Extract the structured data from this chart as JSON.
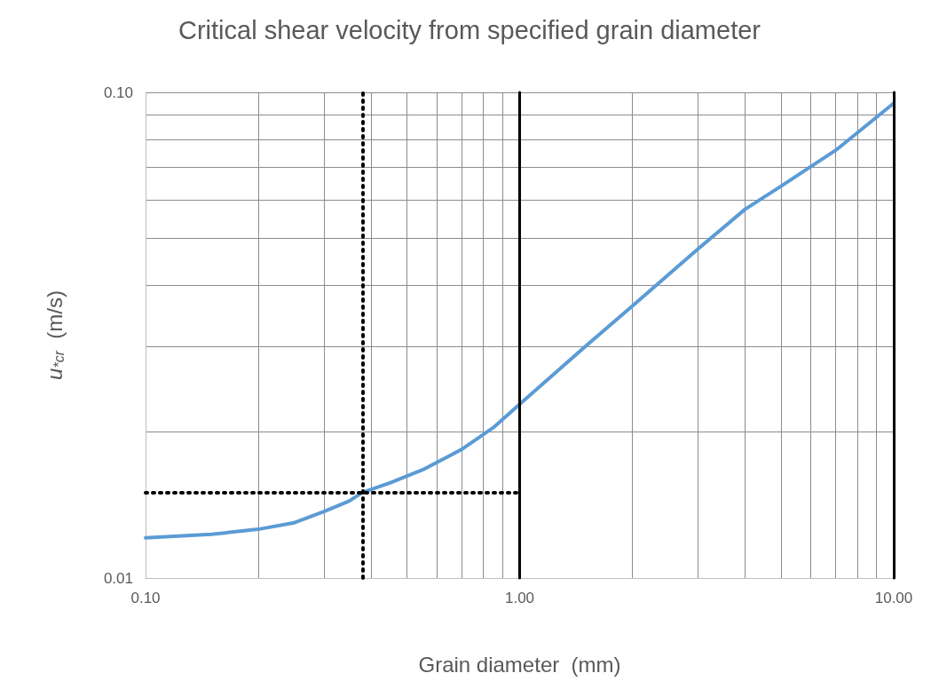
{
  "chart_data": {
    "type": "line",
    "title": "Critical shear velocity from specified grain diameter",
    "xlabel": "Grain diameter  (mm)",
    "ylabel": "u$_{*cr}$  (m/s)",
    "x": [
      0.1,
      0.15,
      0.2,
      0.25,
      0.3,
      0.35,
      0.38,
      0.45,
      0.55,
      0.7,
      0.85,
      1,
      1.5,
      2,
      3,
      4,
      5,
      7,
      10
    ],
    "series": [
      {
        "color": "#5b9bd5",
        "values": [
          0.0121,
          0.0123,
          0.0126,
          0.013,
          0.0137,
          0.0144,
          0.015,
          0.0157,
          0.0167,
          0.0184,
          0.0204,
          0.0228,
          0.03,
          0.0363,
          0.0476,
          0.0574,
          0.0641,
          0.076,
          0.095
        ]
      }
    ],
    "log": "xy",
    "xlim": [
      0.1,
      10
    ],
    "ylim": [
      0.01,
      0.1
    ],
    "xticks": [
      {
        "value": 0.1,
        "label": "0.10"
      },
      {
        "value": 0.2,
        "label": null
      },
      {
        "value": 0.3,
        "label": null
      },
      {
        "value": 0.4,
        "label": null
      },
      {
        "value": 0.5,
        "label": null
      },
      {
        "value": 0.6,
        "label": null
      },
      {
        "value": 0.7,
        "label": null
      },
      {
        "value": 0.8,
        "label": null
      },
      {
        "value": 0.9,
        "label": null
      },
      {
        "value": 1,
        "label": "1.00"
      },
      {
        "value": 2,
        "label": null
      },
      {
        "value": 3,
        "label": null
      },
      {
        "value": 4,
        "label": null
      },
      {
        "value": 5,
        "label": null
      },
      {
        "value": 6,
        "label": null
      },
      {
        "value": 7,
        "label": null
      },
      {
        "value": 8,
        "label": null
      },
      {
        "value": 9,
        "label": null
      },
      {
        "value": 10,
        "label": "10.00"
      }
    ],
    "yticks": [
      {
        "value": 0.01,
        "label": "0.01"
      },
      {
        "value": 0.02,
        "label": null
      },
      {
        "value": 0.03,
        "label": null
      },
      {
        "value": 0.04,
        "label": null
      },
      {
        "value": 0.05,
        "label": null
      },
      {
        "value": 0.06,
        "label": null
      },
      {
        "value": 0.07,
        "label": null
      },
      {
        "value": 0.08,
        "label": null
      },
      {
        "value": 0.09,
        "label": null
      },
      {
        "value": 0.1,
        "label": "0.10"
      }
    ],
    "grid": true,
    "marker": "none",
    "line_style": "solid",
    "ref_lines": [
      {
        "axis": "x",
        "value": 0.38,
        "color": "#000000",
        "line_style": "dotted"
      },
      {
        "axis": "y",
        "value": 0.015,
        "color": "#000000",
        "line_style": "dotted"
      },
      {
        "axis": "x",
        "value": 1,
        "color": "#000000",
        "line_style": "solid"
      },
      {
        "axis": "x",
        "value": 10,
        "color": "#000000",
        "line_style": "solid"
      }
    ]
  }
}
